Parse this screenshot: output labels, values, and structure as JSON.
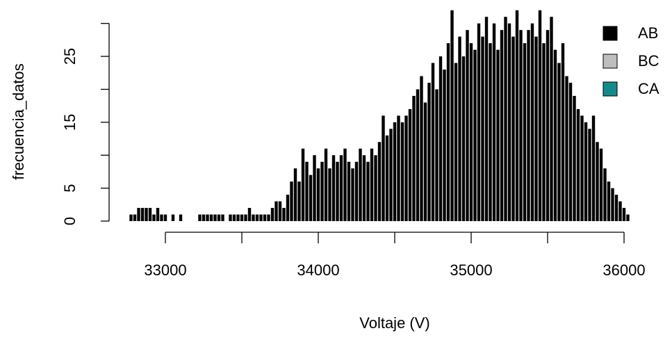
{
  "chart_data": {
    "type": "spike",
    "x_label": "Voltaje (V)",
    "y_label": "frecuencia_datos",
    "x": [
      32775,
      32800,
      32825,
      32850,
      32875,
      32900,
      32925,
      32950,
      32975,
      33000,
      33025,
      33050,
      33075,
      33100,
      33125,
      33150,
      33175,
      33200,
      33225,
      33250,
      33275,
      33300,
      33325,
      33350,
      33375,
      33400,
      33425,
      33450,
      33475,
      33500,
      33525,
      33550,
      33575,
      33600,
      33625,
      33650,
      33675,
      33700,
      33725,
      33750,
      33775,
      33800,
      33825,
      33850,
      33875,
      33900,
      33925,
      33950,
      33975,
      34000,
      34025,
      34050,
      34075,
      34100,
      34125,
      34150,
      34175,
      34200,
      34225,
      34250,
      34275,
      34300,
      34325,
      34350,
      34375,
      34400,
      34425,
      34450,
      34475,
      34500,
      34525,
      34550,
      34575,
      34600,
      34625,
      34650,
      34675,
      34700,
      34725,
      34750,
      34775,
      34800,
      34825,
      34850,
      34875,
      34900,
      34925,
      34950,
      34975,
      35000,
      35025,
      35050,
      35075,
      35100,
      35125,
      35150,
      35175,
      35200,
      35225,
      35250,
      35275,
      35300,
      35325,
      35350,
      35375,
      35400,
      35425,
      35450,
      35475,
      35500,
      35525,
      35550,
      35575,
      35600,
      35625,
      35650,
      35675,
      35700,
      35725,
      35750,
      35775,
      35800,
      35825,
      35850,
      35875,
      35900,
      35925,
      35950,
      35975,
      36000,
      36025
    ],
    "values": [
      1,
      1,
      2,
      2,
      2,
      2,
      1,
      2,
      1,
      1,
      0,
      1,
      0,
      1,
      0,
      0,
      0,
      0,
      1,
      1,
      1,
      1,
      1,
      1,
      1,
      0,
      1,
      1,
      1,
      1,
      1,
      2,
      1,
      1,
      1,
      1,
      1,
      2,
      3,
      3,
      2,
      4,
      6,
      8,
      6,
      11,
      9,
      7,
      10,
      8,
      9,
      11,
      8,
      10,
      9,
      10,
      11,
      9,
      8,
      9,
      11,
      10,
      9,
      11,
      10,
      12,
      16,
      13,
      14,
      15,
      16,
      15,
      16,
      17,
      19,
      20,
      22,
      18,
      21,
      24,
      20,
      25,
      23,
      27,
      32,
      24,
      28,
      25,
      29,
      27,
      26,
      30,
      28,
      31,
      27,
      30,
      26,
      29,
      31,
      30,
      28,
      32,
      29,
      27,
      29,
      30,
      28,
      32,
      27,
      29,
      31,
      26,
      24,
      27,
      22,
      21,
      19,
      17,
      16,
      15,
      14,
      16,
      12,
      11,
      8,
      6,
      5,
      4,
      3,
      2,
      1
    ],
    "color": "#000000",
    "xlim": [
      32700,
      36100
    ],
    "ylim": [
      0,
      32.5
    ],
    "xticks": [
      33000,
      {
        "value": 33500,
        "label": null
      },
      34000,
      {
        "value": 34500,
        "label": null
      },
      35000,
      {
        "value": 35500,
        "label": null
      },
      36000
    ],
    "yticks": [
      0,
      5,
      {
        "value": 10,
        "label": null
      },
      15,
      {
        "value": 20,
        "label": null
      },
      25,
      {
        "value": 30,
        "label": null
      }
    ],
    "legend": {
      "position": "top-right",
      "entries": [
        {
          "name": "AB",
          "color": "#000000"
        },
        {
          "name": "BC",
          "color": "#bebebe"
        },
        {
          "name": "CA",
          "color": "#138a8a"
        }
      ]
    }
  }
}
